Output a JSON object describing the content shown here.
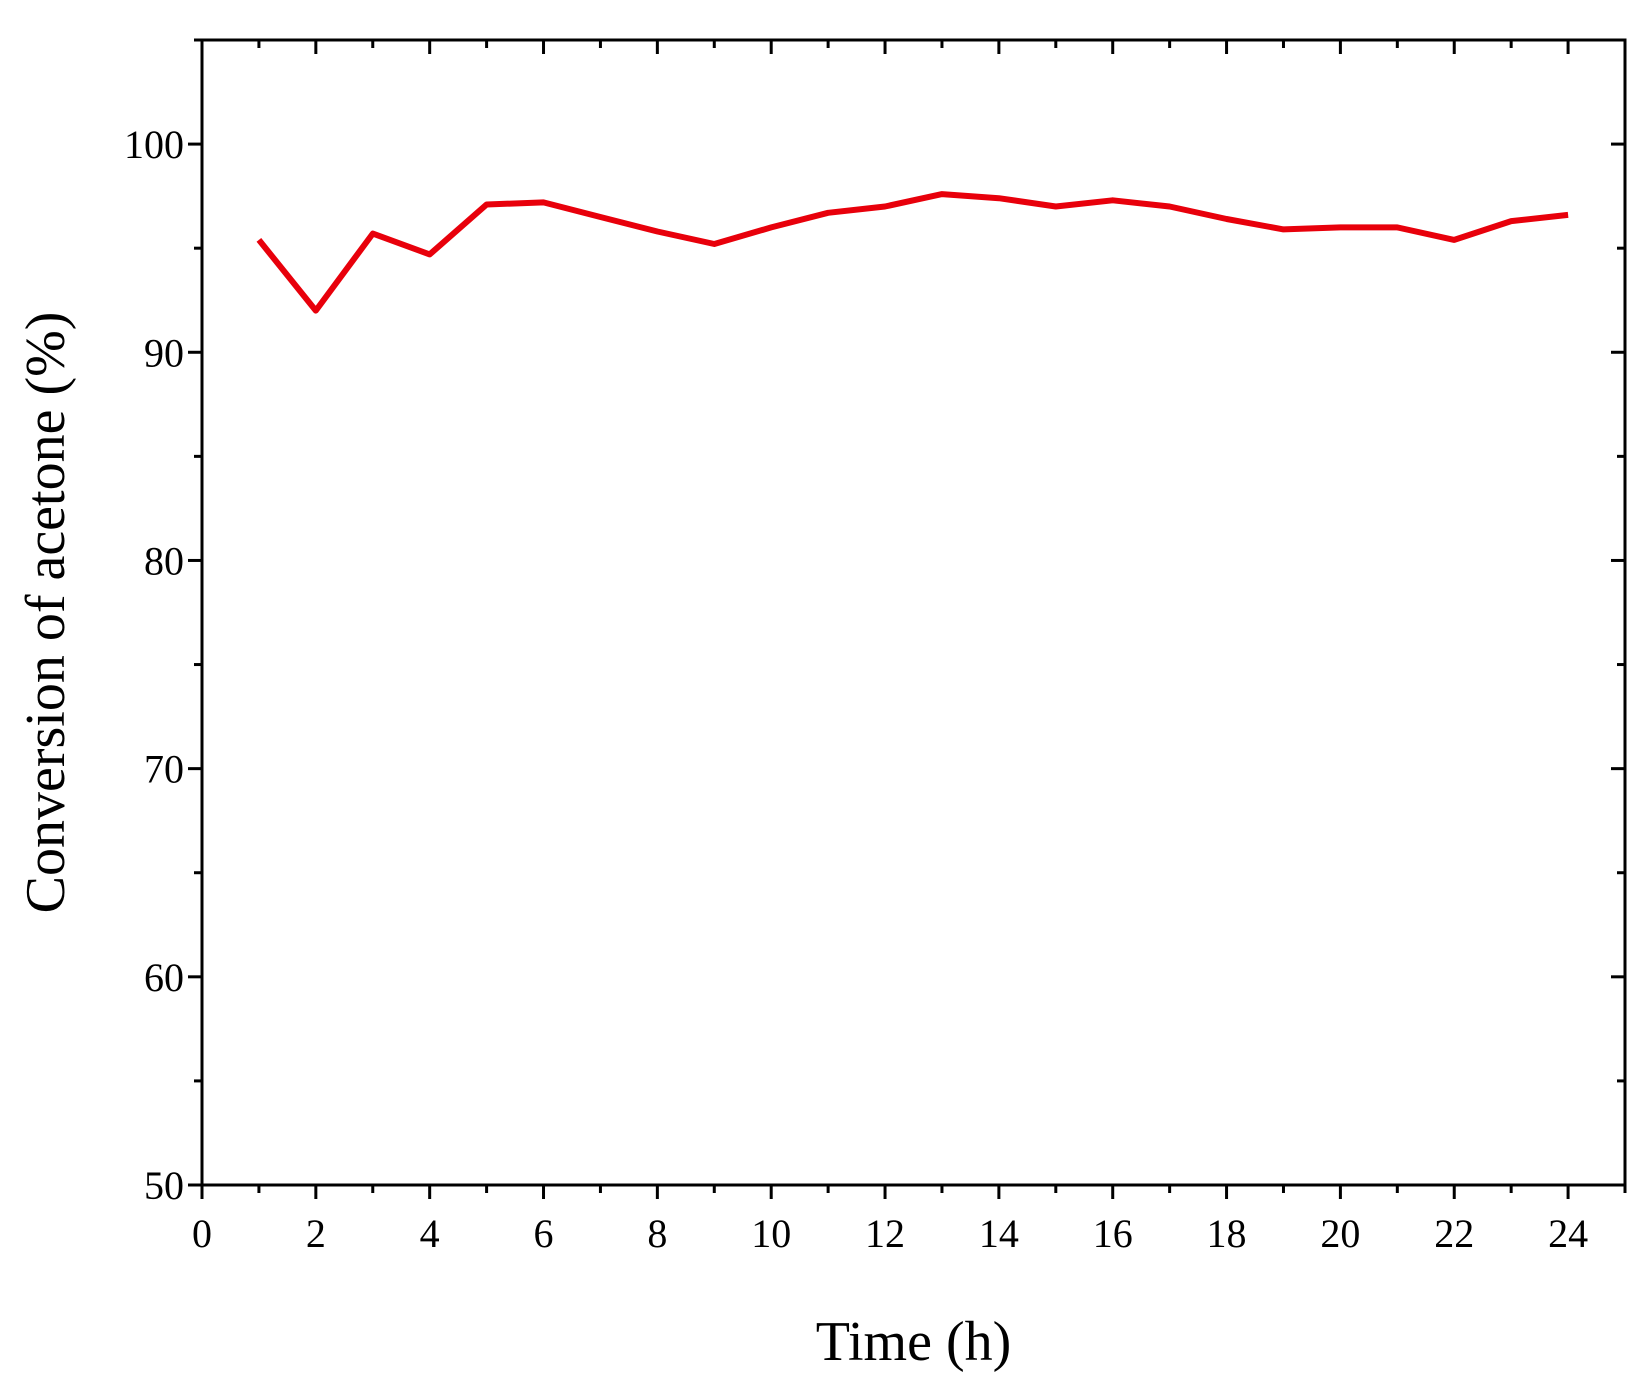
{
  "chart_data": {
    "type": "line",
    "xlabel": "Time (h)",
    "ylabel": "Conversion of acetone (%)",
    "xlim": [
      0,
      25
    ],
    "ylim": [
      50,
      105
    ],
    "x_ticks": [
      0,
      2,
      4,
      6,
      8,
      10,
      12,
      14,
      16,
      18,
      20,
      22,
      24
    ],
    "y_ticks": [
      50,
      60,
      70,
      80,
      90,
      100
    ],
    "x_minor_step": 1,
    "y_minor_step": 5,
    "grid": false,
    "series": [
      {
        "color": "#e8000b",
        "x": [
          1,
          2,
          3,
          4,
          5,
          6,
          7,
          8,
          9,
          10,
          11,
          12,
          13,
          14,
          15,
          16,
          17,
          18,
          19,
          20,
          21,
          22,
          23,
          24
        ],
        "y": [
          95.4,
          92.0,
          95.7,
          94.7,
          97.1,
          97.2,
          96.5,
          95.8,
          95.2,
          96.0,
          96.7,
          97.0,
          97.6,
          97.4,
          97.0,
          97.3,
          97.0,
          96.4,
          95.9,
          96.0,
          96.0,
          95.4,
          96.3,
          96.6
        ]
      }
    ]
  }
}
